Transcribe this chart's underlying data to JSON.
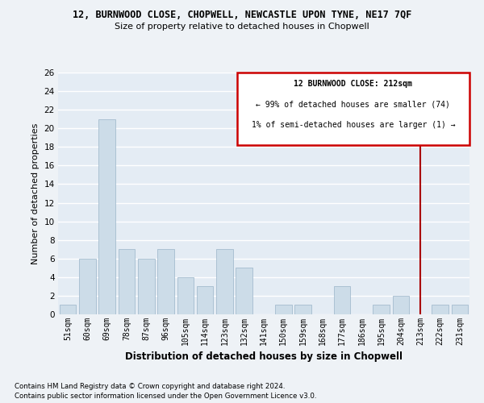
{
  "title1": "12, BURNWOOD CLOSE, CHOPWELL, NEWCASTLE UPON TYNE, NE17 7QF",
  "title2": "Size of property relative to detached houses in Chopwell",
  "xlabel": "Distribution of detached houses by size in Chopwell",
  "ylabel": "Number of detached properties",
  "categories": [
    "51sqm",
    "60sqm",
    "69sqm",
    "78sqm",
    "87sqm",
    "96sqm",
    "105sqm",
    "114sqm",
    "123sqm",
    "132sqm",
    "141sqm",
    "150sqm",
    "159sqm",
    "168sqm",
    "177sqm",
    "186sqm",
    "195sqm",
    "204sqm",
    "213sqm",
    "222sqm",
    "231sqm"
  ],
  "values": [
    1,
    6,
    21,
    7,
    6,
    7,
    4,
    3,
    7,
    5,
    0,
    1,
    1,
    0,
    3,
    0,
    1,
    2,
    0,
    1,
    1
  ],
  "bar_color": "#ccdce8",
  "bar_edgecolor": "#9ab4c8",
  "annotation_line1": "12 BURNWOOD CLOSE: 212sqm",
  "annotation_line2": "← 99% of detached houses are smaller (74)",
  "annotation_line3": "1% of semi-detached houses are larger (1) →",
  "vline_color": "#aa0000",
  "vline_x_index": 18,
  "box_color": "#cc0000",
  "ylim": [
    0,
    26
  ],
  "yticks": [
    0,
    2,
    4,
    6,
    8,
    10,
    12,
    14,
    16,
    18,
    20,
    22,
    24,
    26
  ],
  "footer1": "Contains HM Land Registry data © Crown copyright and database right 2024.",
  "footer2": "Contains public sector information licensed under the Open Government Licence v3.0.",
  "bg_color": "#eef2f6",
  "plot_bg_color": "#e4ecf4"
}
